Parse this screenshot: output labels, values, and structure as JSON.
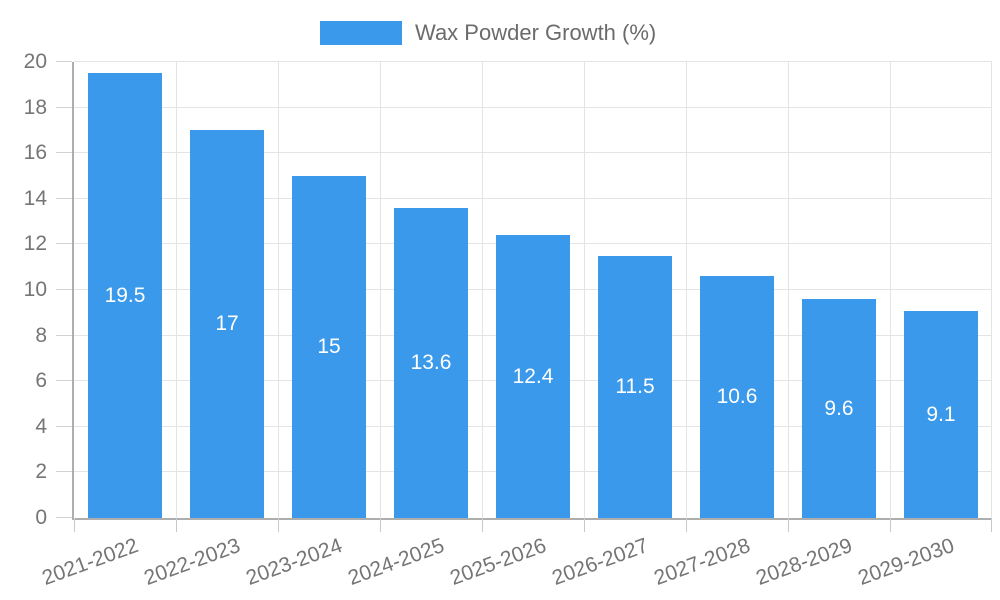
{
  "legend": {
    "label": "Wax Powder Growth (%)"
  },
  "chart_data": {
    "type": "bar",
    "title": "",
    "categories": [
      "2021-2022",
      "2022-2023",
      "2023-2024",
      "2024-2025",
      "2025-2026",
      "2026-2027",
      "2027-2028",
      "2028-2029",
      "2029-2030"
    ],
    "series": [
      {
        "name": "Wax Powder Growth (%)",
        "values": [
          19.5,
          17,
          15,
          13.6,
          12.4,
          11.5,
          10.6,
          9.6,
          9.1
        ]
      }
    ],
    "bar_labels": [
      "19.5",
      "17",
      "15",
      "13.6",
      "12.4",
      "11.5",
      "10.6",
      "9.6",
      "9.1"
    ],
    "xlabel": "",
    "ylabel": "",
    "ylim": [
      0,
      20
    ],
    "yticks": [
      0,
      2,
      4,
      6,
      8,
      10,
      12,
      14,
      16,
      18,
      20
    ],
    "grid": "on",
    "legend_position": "top-center",
    "x_label_rotation_deg": -20,
    "colors": {
      "bar": "#3a99ea",
      "value_label": "#ffffff",
      "grid_line": "#e4e4e4",
      "axis_line": "#aeaeae",
      "tick_line": "#c9c9c9",
      "tick_text": "#757575",
      "legend_text": "#6b6b6b",
      "background": "#ffffff"
    }
  }
}
